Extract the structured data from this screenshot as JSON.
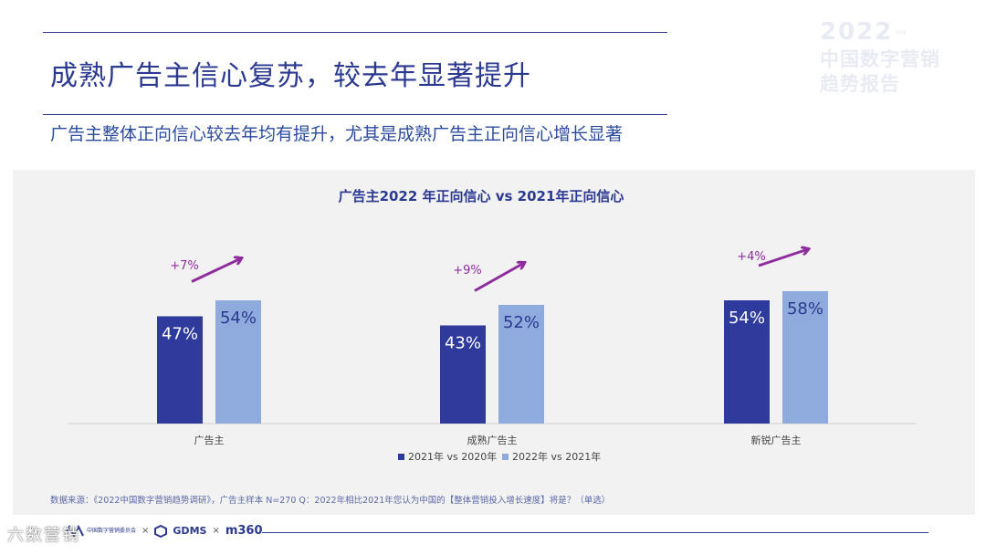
{
  "header": {
    "title": "成熟广告主信心复苏，较去年显著提升",
    "subtitle": "广告主整体正向信心较去年均有提升，尤其是成熟广告主正向信心增长显著"
  },
  "brand": {
    "year": "2022",
    "line1": "中国数字营销",
    "line2": "趋势报告"
  },
  "chart_data": {
    "type": "bar",
    "title": "广告主2022 年正向信心 vs 2021年正向信心",
    "categories": [
      "广告主",
      "成熟广告主",
      "新锐广告主"
    ],
    "series": [
      {
        "name": "2021年 vs 2020年",
        "values": [
          47,
          43,
          54
        ],
        "labels": [
          "47%",
          "43%",
          "54%"
        ],
        "color": "#2e3a9c"
      },
      {
        "name": "2022年 vs 2021年",
        "values": [
          54,
          52,
          58
        ],
        "labels": [
          "54%",
          "52%",
          "58%"
        ],
        "color": "#8faadc"
      }
    ],
    "growth_labels": [
      "+7%",
      "+9%",
      "+4%"
    ],
    "arrow_color": "#8e2c9e",
    "ylim": [
      0,
      100
    ],
    "legend_position": "bottom-center"
  },
  "footnote": "数据来源：《2022中国数字营销趋势调研》，广告主样本 N=270    Q：2022年相比2021年您认为中国的【整体营销投入增长速度】将是？（单选）",
  "footer": {
    "gdms": "GDMS",
    "m360": "m360",
    "times": "×",
    "small_logo_text": "中国数字营销委员会",
    "watermark": "六数营销"
  }
}
